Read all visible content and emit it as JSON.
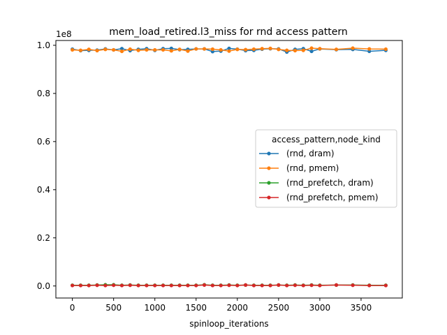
{
  "chart_data": {
    "type": "line",
    "title": "mem_load_retired.l3_miss for rnd access pattern",
    "xlabel": "spinloop_iterations",
    "ylabel": "",
    "y_offset_label": "1e8",
    "xlim": [
      -200,
      4000
    ],
    "ylim": [
      -0.05,
      1.02
    ],
    "x_ticks": [
      0,
      500,
      1000,
      1500,
      2000,
      2500,
      3000,
      3500
    ],
    "x_tick_labels": [
      "0",
      "500",
      "1000",
      "1500",
      "2000",
      "2500",
      "3000",
      "3500"
    ],
    "y_ticks": [
      0.0,
      0.2,
      0.4,
      0.6,
      0.8,
      1.0
    ],
    "y_tick_labels": [
      "0.0",
      "0.2",
      "0.4",
      "0.6",
      "0.8",
      "1.0"
    ],
    "grid": false,
    "legend": {
      "title": "access_pattern,node_kind",
      "placement": "center-right"
    },
    "series": [
      {
        "name": "(rnd, dram)",
        "color": "#1f77b4",
        "x": [
          0,
          100,
          200,
          300,
          400,
          500,
          600,
          700,
          800,
          900,
          1000,
          1100,
          1200,
          1300,
          1400,
          1500,
          1600,
          1700,
          1800,
          1900,
          2000,
          2100,
          2200,
          2300,
          2400,
          2500,
          2600,
          2700,
          2800,
          2900,
          3000,
          3200,
          3400,
          3600,
          3800
        ],
        "y": [
          0.984,
          0.978,
          0.979,
          0.98,
          0.985,
          0.981,
          0.986,
          0.978,
          0.983,
          0.986,
          0.979,
          0.986,
          0.987,
          0.982,
          0.983,
          0.985,
          0.985,
          0.974,
          0.976,
          0.987,
          0.984,
          0.978,
          0.979,
          0.984,
          0.986,
          0.985,
          0.972,
          0.983,
          0.986,
          0.975,
          0.985,
          0.982,
          0.983,
          0.975,
          0.979
        ]
      },
      {
        "name": "(rnd, pmem)",
        "color": "#ff7f0e",
        "x": [
          0,
          100,
          200,
          300,
          400,
          500,
          600,
          700,
          800,
          900,
          1000,
          1100,
          1200,
          1300,
          1400,
          1500,
          1600,
          1700,
          1800,
          1900,
          2000,
          2100,
          2200,
          2300,
          2400,
          2500,
          2600,
          2700,
          2800,
          2900,
          3000,
          3200,
          3400,
          3600,
          3800
        ],
        "y": [
          0.981,
          0.979,
          0.983,
          0.978,
          0.983,
          0.981,
          0.975,
          0.984,
          0.979,
          0.981,
          0.981,
          0.981,
          0.977,
          0.983,
          0.976,
          0.985,
          0.985,
          0.984,
          0.981,
          0.976,
          0.983,
          0.982,
          0.984,
          0.986,
          0.987,
          0.983,
          0.979,
          0.978,
          0.979,
          0.988,
          0.986,
          0.983,
          0.988,
          0.985,
          0.984
        ]
      },
      {
        "name": "(rnd_prefetch, dram)",
        "color": "#2ca02c",
        "x": [
          0,
          100,
          200,
          300,
          400,
          500,
          600,
          700,
          800,
          900,
          1000,
          1100,
          1200,
          1300,
          1400,
          1500,
          1600,
          1700,
          1800,
          1900,
          2000,
          2100,
          2200,
          2300,
          2400,
          2500,
          2600,
          2700,
          2800,
          2900,
          3000,
          3200,
          3400,
          3600,
          3800
        ],
        "y": [
          0.003,
          0.003,
          0.003,
          0.004,
          0.005,
          0.005,
          0.003,
          0.004,
          0.003,
          0.003,
          0.003,
          0.003,
          0.003,
          0.003,
          0.003,
          0.003,
          0.005,
          0.003,
          0.003,
          0.004,
          0.003,
          0.004,
          0.003,
          0.003,
          0.003,
          0.004,
          0.003,
          0.004,
          0.003,
          0.004,
          0.003,
          0.004,
          0.004,
          0.003,
          0.003
        ]
      },
      {
        "name": "(rnd_prefetch, pmem)",
        "color": "#d62728",
        "x": [
          0,
          100,
          200,
          300,
          400,
          500,
          600,
          700,
          800,
          900,
          1000,
          1100,
          1200,
          1300,
          1400,
          1500,
          1600,
          1700,
          1800,
          1900,
          2000,
          2100,
          2200,
          2300,
          2400,
          2500,
          2600,
          2700,
          2800,
          2900,
          3000,
          3200,
          3400,
          3600,
          3800
        ],
        "y": [
          0.002,
          0.002,
          0.002,
          0.003,
          0.002,
          0.003,
          0.002,
          0.003,
          0.002,
          0.002,
          0.002,
          0.002,
          0.002,
          0.002,
          0.002,
          0.002,
          0.004,
          0.002,
          0.002,
          0.003,
          0.002,
          0.004,
          0.002,
          0.002,
          0.002,
          0.004,
          0.002,
          0.003,
          0.002,
          0.003,
          0.002,
          0.004,
          0.003,
          0.002,
          0.002
        ]
      }
    ]
  }
}
